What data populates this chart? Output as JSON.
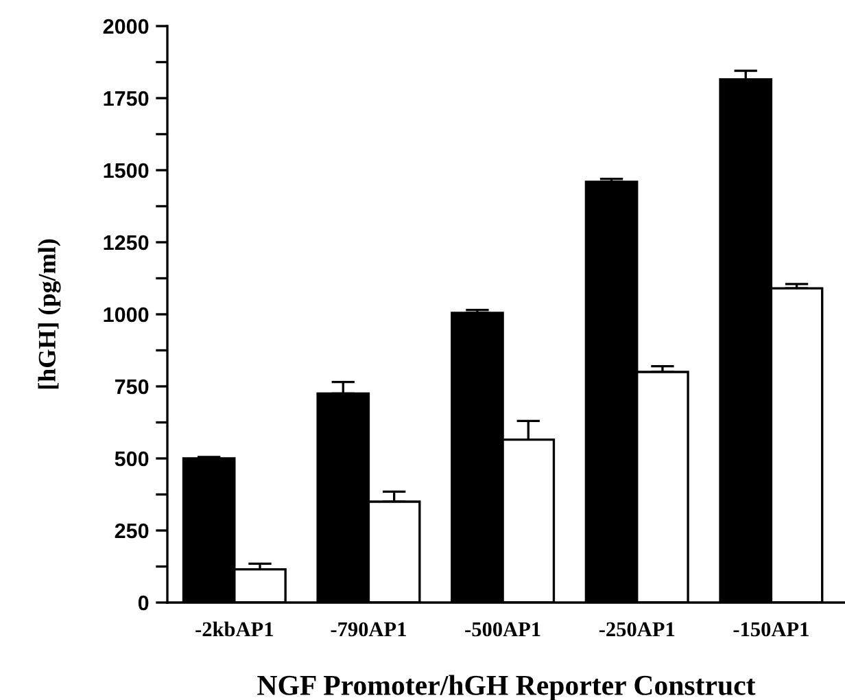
{
  "chart_data": {
    "type": "bar",
    "xlabel": "NGF Promoter/hGH Reporter Construct",
    "ylabel": "[hGH] (pg/ml)",
    "categories": [
      "-2kbAP1",
      "-790AP1",
      "-500AP1",
      "-250AP1",
      "-150AP1"
    ],
    "series": [
      {
        "color": "#000000",
        "values": [
          500,
          725,
          1005,
          1460,
          1815
        ],
        "errors": [
          [
            500,
            505
          ],
          [
            725,
            765
          ],
          [
            1005,
            1015
          ],
          [
            1460,
            1470
          ],
          [
            1815,
            1845
          ]
        ]
      },
      {
        "color": "#ffffff",
        "values": [
          115,
          350,
          565,
          800,
          1090
        ],
        "errors": [
          [
            115,
            135
          ],
          [
            350,
            385
          ],
          [
            565,
            630
          ],
          [
            800,
            820
          ],
          [
            1090,
            1105
          ]
        ]
      }
    ],
    "ylim": [
      0,
      2000
    ],
    "yticks": [
      0,
      {
        "value": 125,
        "label": null
      },
      250,
      {
        "value": 375,
        "label": null
      },
      500,
      {
        "value": 625,
        "label": null
      },
      750,
      {
        "value": 875,
        "label": null
      },
      1000,
      {
        "value": 1125,
        "label": null
      },
      1250,
      {
        "value": 1375,
        "label": null
      },
      1500,
      {
        "value": 1625,
        "label": null
      },
      1750,
      {
        "value": 1875,
        "label": null
      },
      2000
    ],
    "grid": false,
    "legend": false
  }
}
